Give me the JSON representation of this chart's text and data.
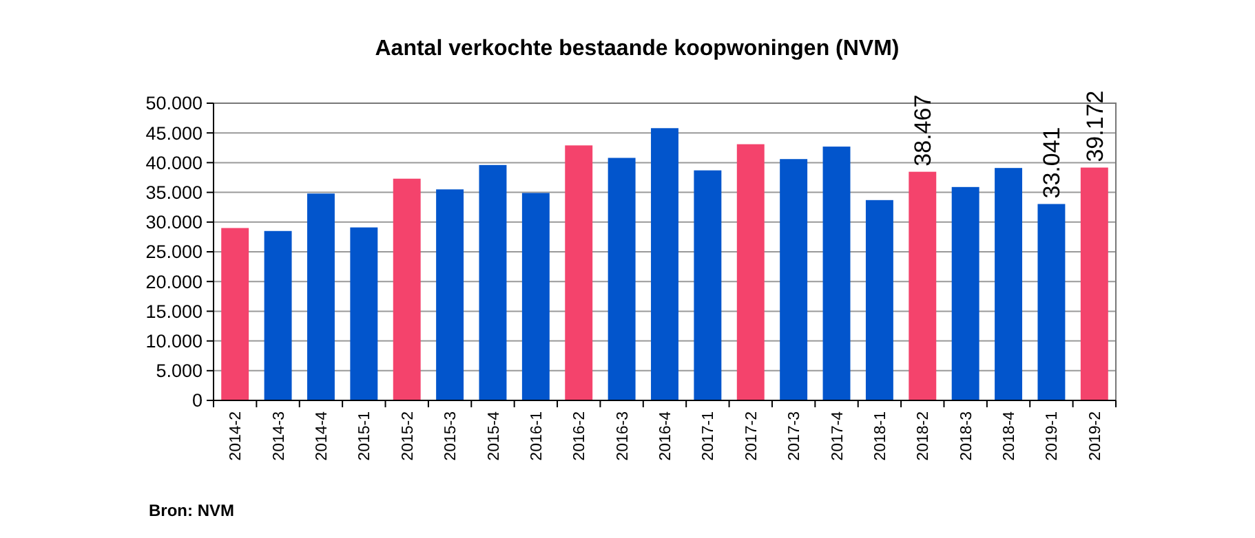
{
  "chart_data": {
    "type": "bar",
    "title": "Aantal verkochte bestaande koopwoningen (NVM)",
    "categories": [
      "2014-2",
      "2014-3",
      "2014-4",
      "2015-1",
      "2015-2",
      "2015-3",
      "2015-4",
      "2016-1",
      "2016-2",
      "2016-3",
      "2016-4",
      "2017-1",
      "2017-2",
      "2017-3",
      "2017-4",
      "2018-1",
      "2018-2",
      "2018-3",
      "2018-4",
      "2019-1",
      "2019-2"
    ],
    "values": [
      29000,
      28500,
      34800,
      29100,
      37300,
      35500,
      39600,
      34900,
      42900,
      40800,
      45800,
      38700,
      43100,
      40600,
      42700,
      33700,
      38467,
      35900,
      39100,
      33041,
      39172
    ],
    "colors": [
      "#f4436c",
      "#0255cc",
      "#0255cc",
      "#0255cc",
      "#f4436c",
      "#0255cc",
      "#0255cc",
      "#0255cc",
      "#f4436c",
      "#0255cc",
      "#0255cc",
      "#0255cc",
      "#f4436c",
      "#0255cc",
      "#0255cc",
      "#0255cc",
      "#f4436c",
      "#0255cc",
      "#0255cc",
      "#0255cc",
      "#f4436c"
    ],
    "value_labels": [
      null,
      null,
      null,
      null,
      null,
      null,
      null,
      null,
      null,
      null,
      null,
      null,
      null,
      null,
      null,
      null,
      "38.467",
      null,
      null,
      "33.041",
      "39.172"
    ],
    "ylim": [
      0,
      50000
    ],
    "yticks": [
      {
        "value": 0,
        "label": "0"
      },
      {
        "value": 5000,
        "label": "5.000"
      },
      {
        "value": 10000,
        "label": "10.000"
      },
      {
        "value": 15000,
        "label": "15.000"
      },
      {
        "value": 20000,
        "label": "20.000"
      },
      {
        "value": 25000,
        "label": "25.000"
      },
      {
        "value": 30000,
        "label": "30.000"
      },
      {
        "value": 35000,
        "label": "35.000"
      },
      {
        "value": 40000,
        "label": "40.000"
      },
      {
        "value": 45000,
        "label": "45.000"
      },
      {
        "value": 50000,
        "label": "50.000"
      }
    ],
    "grid": "y",
    "annotations": [
      "Bron: NVM"
    ]
  }
}
